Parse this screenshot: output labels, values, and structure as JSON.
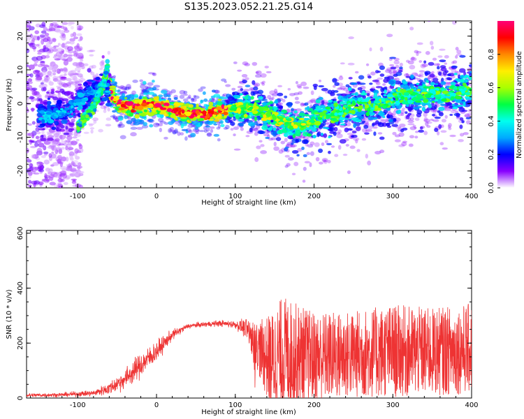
{
  "title": "S135.2023.052.21.25.G14",
  "chart_data": [
    {
      "type": "heatmap",
      "xlabel": "Height of straight line (km)",
      "ylabel": "Frequency (Hz)",
      "xlim": [
        -165,
        400
      ],
      "ylim": [
        -25,
        24.5
      ],
      "xticks": [
        "-100",
        "0",
        "100",
        "200",
        "300",
        "400"
      ],
      "yticks": [
        "20",
        "10",
        "0",
        "-10",
        "-20"
      ],
      "colorbar": {
        "label": "Normalized spectral amplitude",
        "range": [
          0,
          1
        ],
        "ticks": [
          "0.0",
          "0.2",
          "0.4",
          "0.6",
          "0.8"
        ],
        "colormap": [
          "#ffffff",
          "#8800ff",
          "#0000ff",
          "#00aaff",
          "#00ffee",
          "#00ff44",
          "#aaff00",
          "#ffee00",
          "#ff8800",
          "#ff0000",
          "#ff0077"
        ]
      },
      "ridge": {
        "x": [
          -150,
          -130,
          -110,
          -95,
          -85,
          -75,
          -68,
          -60,
          -55,
          -45,
          -30,
          -15,
          0,
          20,
          40,
          60,
          75,
          90,
          110,
          130,
          150,
          165,
          180,
          200,
          220,
          250,
          280,
          310,
          340,
          370,
          400
        ],
        "y": [
          -3,
          -3.5,
          -2,
          1,
          3,
          4,
          5,
          4,
          2,
          -0.5,
          -1,
          -0.5,
          -0.5,
          -2,
          -3,
          -3,
          -2.5,
          -1.5,
          -1,
          -2,
          -4,
          -6,
          -6.5,
          -5,
          -3,
          -1,
          0,
          2,
          3,
          3,
          4
        ]
      },
      "branch": {
        "x": [
          -100,
          -90,
          -80,
          -72,
          -66,
          -62
        ],
        "y": [
          -7,
          -4,
          -1,
          3,
          7,
          11
        ]
      }
    },
    {
      "type": "line",
      "xlabel": "Height of straight line (km)",
      "ylabel": "SNR (10 * v/v)",
      "xlim": [
        -165,
        400
      ],
      "ylim": [
        0,
        610
      ],
      "xticks": [
        "-100",
        "0",
        "100",
        "200",
        "300",
        "400"
      ],
      "yticks": [
        "0",
        "200",
        "400",
        "600"
      ],
      "series_color": "#ee3333",
      "envelope": {
        "x": [
          -165,
          -120,
          -80,
          -60,
          -40,
          -20,
          0,
          20,
          40,
          60,
          80,
          100,
          115,
          130,
          145,
          160,
          200,
          250,
          300,
          350,
          400
        ],
        "base": [
          10,
          12,
          18,
          35,
          70,
          120,
          170,
          230,
          262,
          268,
          272,
          268,
          250,
          150,
          80,
          100,
          100,
          110,
          120,
          120,
          130
        ],
        "spread": [
          8,
          8,
          12,
          25,
          40,
          50,
          40,
          20,
          10,
          10,
          12,
          15,
          40,
          200,
          350,
          420,
          330,
          320,
          340,
          320,
          330
        ]
      }
    }
  ]
}
